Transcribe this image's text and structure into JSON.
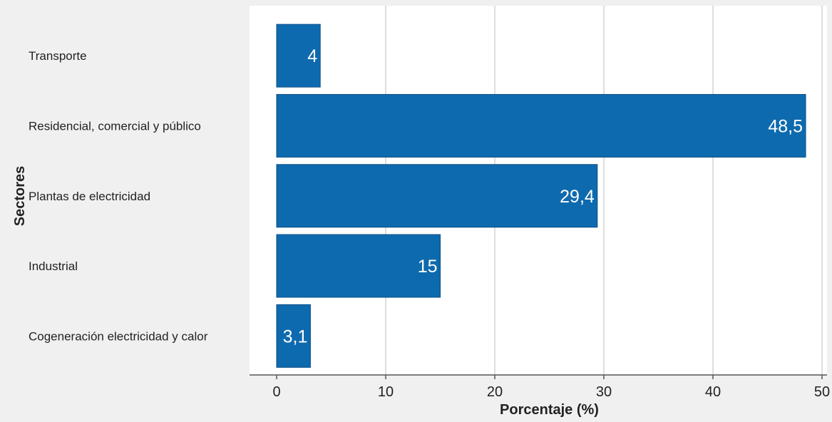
{
  "chart_data": {
    "type": "bar",
    "orientation": "horizontal",
    "title": "",
    "xlabel": "Porcentaje (%)",
    "ylabel": "Sectores",
    "categories": [
      "Transporte",
      "Residencial, comercial y público",
      "Plantas de electricidad",
      "Industrial",
      "Cogeneración electricidad y calor"
    ],
    "values": [
      4,
      48.5,
      29.4,
      15,
      3.1
    ],
    "data_labels": [
      "4",
      "48,5",
      "29,4",
      "15",
      "3,1"
    ],
    "xlim": [
      0,
      50
    ],
    "xticks": [
      0,
      10,
      20,
      30,
      40,
      50
    ],
    "grid": true,
    "legend": "none",
    "colors": {
      "bar": "#0e6aae",
      "bar_stroke": "#0a4f86",
      "background": "#f0f0f0",
      "plot_background": "#ffffff",
      "grid": "#d4d4d4",
      "axis": "#555555",
      "label": "#222222",
      "data_label": "#ffffff"
    }
  }
}
